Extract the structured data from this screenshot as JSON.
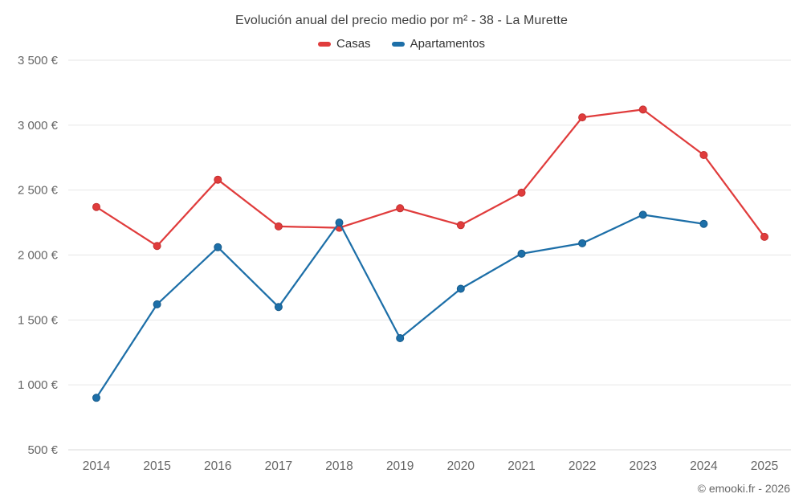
{
  "title": "Evolución anual del precio medio por m² - 38 - La Murette",
  "footer": "© emooki.fr - 2026",
  "colors": {
    "casas": "#e03c3c",
    "casas_stroke": "#c23030",
    "apartamentos": "#1d6fa8",
    "apartamentos_stroke": "#165a8a",
    "gridline": "#e6e6e6",
    "axis_label": "#666666"
  },
  "chart_data": {
    "type": "line",
    "title": "Evolución anual del precio medio por m² - 38 - La Murette",
    "categories": [
      2014,
      2015,
      2016,
      2017,
      2018,
      2019,
      2020,
      2021,
      2022,
      2023,
      2024,
      2025
    ],
    "series": [
      {
        "name": "Casas",
        "color": "#e03c3c",
        "marker_stroke": "#c23030",
        "values": [
          2370,
          2070,
          2580,
          2220,
          2210,
          2360,
          2230,
          2480,
          3060,
          3120,
          2770,
          2140
        ]
      },
      {
        "name": "Apartamentos",
        "color": "#1d6fa8",
        "marker_stroke": "#165a8a",
        "values": [
          900,
          1620,
          2060,
          1600,
          2250,
          1360,
          1740,
          2010,
          2090,
          2310,
          2240,
          null
        ]
      }
    ],
    "xlabel": "",
    "ylabel": "",
    "ylim": [
      500,
      3500
    ],
    "ytick_step": 500,
    "ytick_suffix": " €",
    "grid": "horizontal",
    "legend_position": "top"
  }
}
